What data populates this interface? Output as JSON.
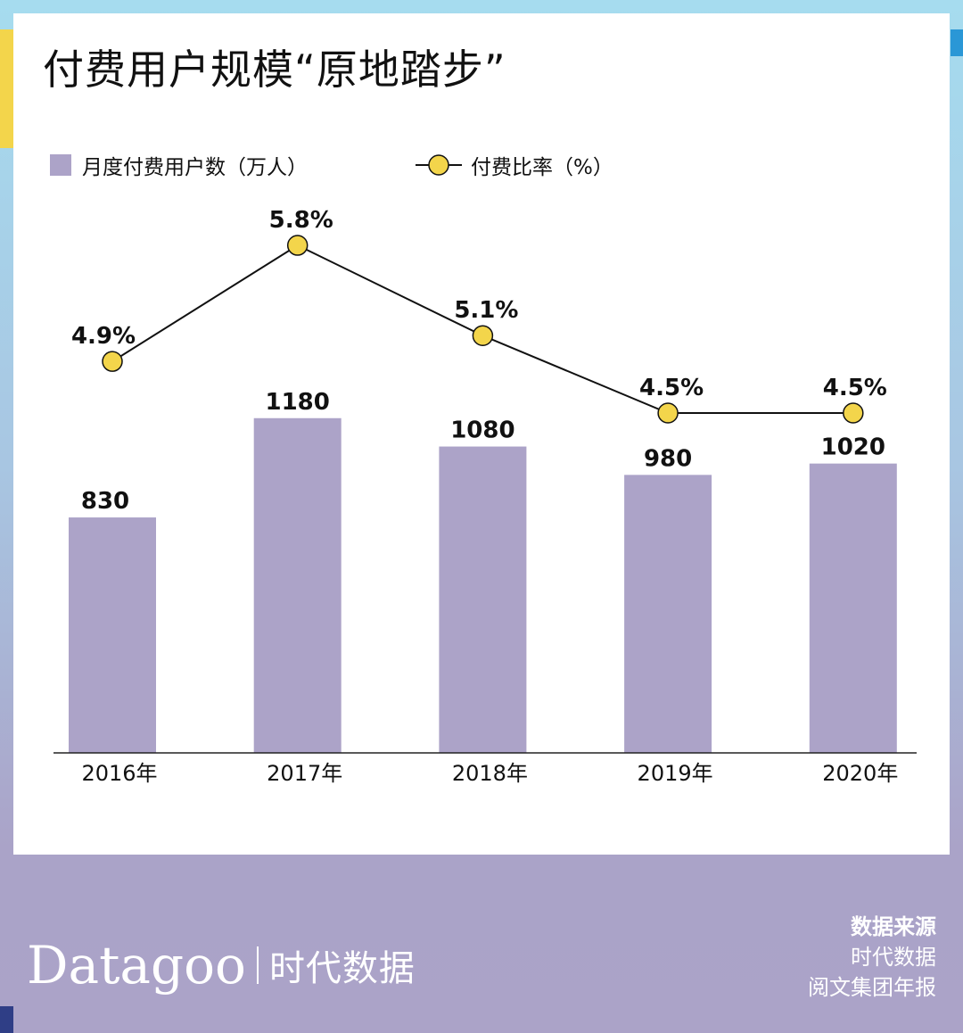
{
  "title": "付费用户规模“原地踏步”",
  "legend": {
    "bars": "月度付费用户数（万人）",
    "line": "付费比率（%）"
  },
  "colors": {
    "bar": "#aca3c8",
    "point": "#f3d54b"
  },
  "chart_data": {
    "type": "bar+line",
    "title": "付费用户规模“原地踏步”",
    "categories": [
      "2016年",
      "2017年",
      "2018年",
      "2019年",
      "2020年"
    ],
    "series": [
      {
        "name": "月度付费用户数（万人）",
        "type": "bar",
        "values": [
          830,
          1180,
          1080,
          980,
          1020
        ],
        "labels": [
          "830",
          "1180",
          "1080",
          "980",
          "1020"
        ]
      },
      {
        "name": "付费比率（%）",
        "type": "line",
        "values": [
          4.9,
          5.8,
          5.1,
          4.5,
          4.5
        ],
        "labels": [
          "4.9%",
          "5.8%",
          "5.1%",
          "4.5%",
          "4.5%"
        ]
      }
    ],
    "legend": "top-left",
    "grid": false
  },
  "footer": {
    "logo_en": "Datagoo",
    "logo_cn": "时代数据",
    "source_heading": "数据来源",
    "source_lines": [
      "时代数据",
      "阅文集团年报"
    ]
  }
}
